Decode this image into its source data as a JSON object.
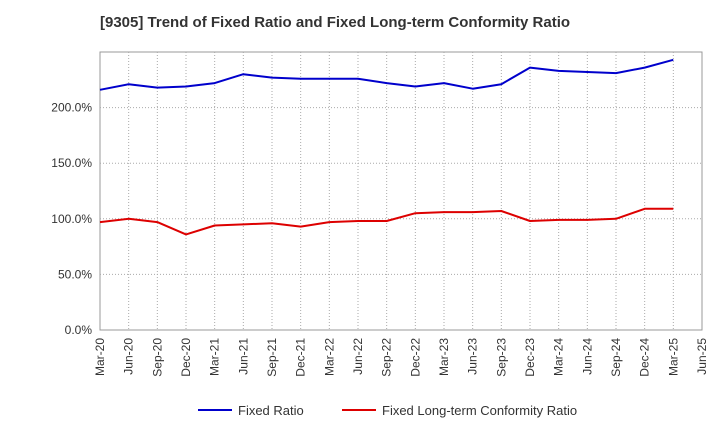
{
  "chart_data": {
    "type": "line",
    "title": "[9305]  Trend of Fixed Ratio and Fixed Long-term Conformity Ratio",
    "xlabel": "",
    "ylabel": "",
    "ylim": [
      0,
      250
    ],
    "yticks": [
      0,
      50,
      100,
      150,
      200
    ],
    "ytick_labels": [
      "0.0%",
      "50.0%",
      "100.0%",
      "150.0%",
      "200.0%"
    ],
    "x": [
      "Mar-20",
      "Jun-20",
      "Sep-20",
      "Dec-20",
      "Mar-21",
      "Jun-21",
      "Sep-21",
      "Dec-21",
      "Mar-22",
      "Jun-22",
      "Sep-22",
      "Dec-22",
      "Mar-23",
      "Jun-23",
      "Sep-23",
      "Dec-23",
      "Mar-24",
      "Jun-24",
      "Sep-24",
      "Dec-24",
      "Mar-25",
      "Jun-25"
    ],
    "grid": true,
    "legend_position": "bottom",
    "series": [
      {
        "name": "Fixed Ratio",
        "color": "#0000cc",
        "values": [
          216,
          221,
          218,
          219,
          222,
          230,
          227,
          226,
          226,
          226,
          222,
          219,
          222,
          217,
          221,
          236,
          233,
          232,
          231,
          236,
          243,
          null
        ]
      },
      {
        "name": "Fixed Long-term Conformity Ratio",
        "color": "#dd0000",
        "values": [
          97,
          100,
          97,
          86,
          94,
          95,
          96,
          93,
          97,
          98,
          98,
          105,
          106,
          106,
          107,
          98,
          99,
          99,
          100,
          109,
          109,
          null
        ]
      }
    ]
  }
}
